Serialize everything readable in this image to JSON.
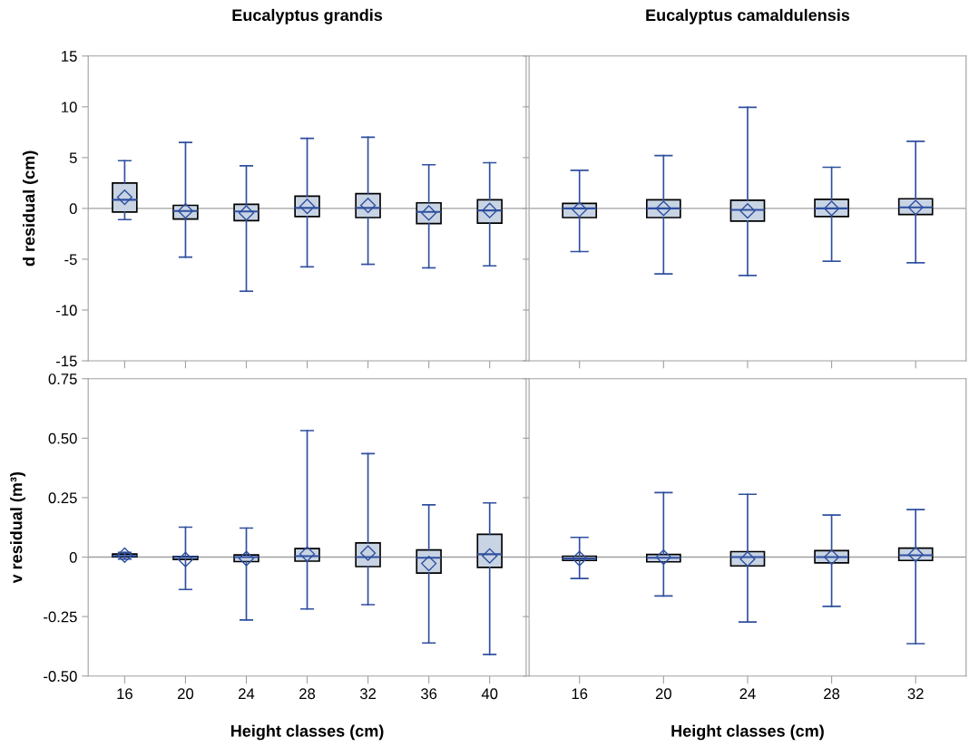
{
  "chart_data": [
    {
      "type": "box",
      "title": "Eucalyptus grandis",
      "ylabel": "d residual (cm)",
      "categories": [
        "16",
        "20",
        "24",
        "28",
        "32",
        "36",
        "40"
      ],
      "ylim": [
        -15,
        15
      ],
      "yticks": [
        -15,
        -10,
        -5,
        0,
        5,
        10,
        15
      ],
      "tick_labels": "y",
      "grid": false,
      "ref_lines": [
        {
          "axis": "y",
          "value": 0,
          "color": "#a0a0a0"
        }
      ],
      "series": [
        {
          "color": "#c8d4e4",
          "boxes": [
            {
              "low": -1.1,
              "q1": -0.35,
              "median": 0.85,
              "q3": 2.5,
              "high": 4.7,
              "mean": 1.1
            },
            {
              "low": -4.8,
              "q1": -1.05,
              "median": -0.25,
              "q3": 0.3,
              "high": 6.5,
              "mean": -0.25
            },
            {
              "low": -8.15,
              "q1": -1.2,
              "median": -0.3,
              "q3": 0.4,
              "high": 4.2,
              "mean": -0.45
            },
            {
              "low": -5.75,
              "q1": -0.8,
              "median": 0.05,
              "q3": 1.2,
              "high": 6.9,
              "mean": 0.2
            },
            {
              "low": -5.5,
              "q1": -0.9,
              "median": 0.05,
              "q3": 1.45,
              "high": 7.0,
              "mean": 0.3
            },
            {
              "low": -5.85,
              "q1": -1.5,
              "median": -0.35,
              "q3": 0.55,
              "high": 4.3,
              "mean": -0.45
            },
            {
              "low": -5.65,
              "q1": -1.45,
              "median": -0.2,
              "q3": 0.85,
              "high": 4.5,
              "mean": -0.2
            }
          ]
        }
      ]
    },
    {
      "type": "box",
      "title": "Eucalyptus camaldulensis",
      "categories": [
        "16",
        "20",
        "24",
        "28",
        "32"
      ],
      "ylim": [
        -15,
        15
      ],
      "yticks": [
        -15,
        -10,
        -5,
        0,
        5,
        10,
        15
      ],
      "tick_labels": false,
      "grid": false,
      "ref_lines": [
        {
          "axis": "y",
          "value": 0,
          "color": "#a0a0a0"
        }
      ],
      "series": [
        {
          "color": "#c8d4e4",
          "boxes": [
            {
              "low": -4.25,
              "q1": -0.9,
              "median": 0,
              "q3": 0.5,
              "high": 3.75,
              "mean": -0.1
            },
            {
              "low": -6.45,
              "q1": -0.9,
              "median": 0,
              "q3": 0.85,
              "high": 5.2,
              "mean": 0
            },
            {
              "low": -6.6,
              "q1": -1.25,
              "median": -0.15,
              "q3": 0.8,
              "high": 9.95,
              "mean": -0.25
            },
            {
              "low": -5.2,
              "q1": -0.8,
              "median": 0,
              "q3": 0.9,
              "high": 4.05,
              "mean": 0
            },
            {
              "low": -5.35,
              "q1": -0.6,
              "median": 0.1,
              "q3": 0.95,
              "high": 6.6,
              "mean": 0.1
            }
          ]
        }
      ]
    },
    {
      "type": "box",
      "ylabel": "v residual (m³)",
      "xlabel": "Height classes (cm)",
      "categories": [
        "16",
        "20",
        "24",
        "28",
        "32",
        "36",
        "40"
      ],
      "ylim": [
        -0.5,
        0.75
      ],
      "yticks": [
        {
          "value": -0.5,
          "label": "-0.50"
        },
        {
          "value": -0.25,
          "label": "-0.25"
        },
        0,
        {
          "value": 0.25,
          "label": "0.25"
        },
        {
          "value": 0.5,
          "label": "0.50"
        },
        {
          "value": 0.75,
          "label": "0.75"
        }
      ],
      "grid": false,
      "ref_lines": [
        {
          "axis": "y",
          "value": 0,
          "color": "#a0a0a0"
        }
      ],
      "series": [
        {
          "color": "#c8d4e4",
          "boxes": [
            {
              "low": -0.008,
              "q1": 0.001,
              "median": 0.005,
              "q3": 0.013,
              "high": 0.02,
              "mean": 0.008
            },
            {
              "low": -0.136,
              "q1": -0.01,
              "median": 0,
              "q3": 0.003,
              "high": 0.126,
              "mean": -0.01
            },
            {
              "low": -0.264,
              "q1": -0.019,
              "median": 0,
              "q3": 0.009,
              "high": 0.122,
              "mean": -0.006
            },
            {
              "low": -0.218,
              "q1": -0.017,
              "median": 0.004,
              "q3": 0.036,
              "high": 0.532,
              "mean": 0.013
            },
            {
              "low": -0.2,
              "q1": -0.04,
              "median": 0,
              "q3": 0.06,
              "high": 0.435,
              "mean": 0.017
            },
            {
              "low": -0.361,
              "q1": -0.067,
              "median": -0.003,
              "q3": 0.03,
              "high": 0.22,
              "mean": -0.027
            },
            {
              "low": -0.409,
              "q1": -0.043,
              "median": 0.012,
              "q3": 0.096,
              "high": 0.228,
              "mean": 0.005
            }
          ]
        }
      ]
    },
    {
      "type": "box",
      "xlabel": "Height classes (cm)",
      "categories": [
        "16",
        "20",
        "24",
        "28",
        "32"
      ],
      "ylim": [
        -0.5,
        0.75
      ],
      "yticks": [
        -0.5,
        -0.25,
        0,
        0.25,
        0.5,
        0.75
      ],
      "tick_labels": "x",
      "grid": false,
      "ref_lines": [
        {
          "axis": "y",
          "value": 0,
          "color": "#a0a0a0"
        }
      ],
      "series": [
        {
          "color": "#c8d4e4",
          "boxes": [
            {
              "low": -0.09,
              "q1": -0.014,
              "median": -0.006,
              "q3": 0.004,
              "high": 0.083,
              "mean": -0.006
            },
            {
              "low": -0.163,
              "q1": -0.02,
              "median": -0.003,
              "q3": 0.011,
              "high": 0.271,
              "mean": 0
            },
            {
              "low": -0.273,
              "q1": -0.037,
              "median": 0,
              "q3": 0.023,
              "high": 0.264,
              "mean": -0.008
            },
            {
              "low": -0.207,
              "q1": -0.024,
              "median": 0,
              "q3": 0.027,
              "high": 0.177,
              "mean": 0
            },
            {
              "low": -0.364,
              "q1": -0.014,
              "median": 0.008,
              "q3": 0.038,
              "high": 0.2,
              "mean": 0.011
            }
          ]
        }
      ]
    }
  ]
}
